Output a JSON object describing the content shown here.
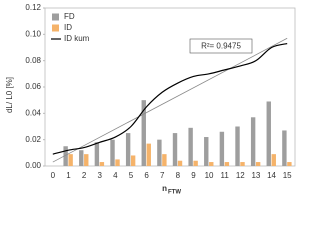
{
  "chart_data": {
    "type": "bar",
    "ylabel": "dL/ L0 [%]",
    "xlabel": "n",
    "xlabel_sub": "FTW",
    "categories": [
      "0",
      "1",
      "2",
      "3",
      "4",
      "5",
      "6",
      "7",
      "8",
      "9",
      "10",
      "11",
      "12",
      "13",
      "14",
      "15"
    ],
    "series": [
      {
        "name": "FD",
        "type": "bar",
        "color": "#9e9e9e",
        "values": [
          null,
          0.015,
          0.012,
          0.018,
          0.02,
          0.025,
          0.05,
          0.02,
          0.025,
          0.029,
          0.022,
          0.026,
          0.03,
          0.037,
          0.049,
          0.027
        ]
      },
      {
        "name": "ID",
        "type": "bar",
        "color": "#f5b36a",
        "values": [
          null,
          0.009,
          0.009,
          0.003,
          0.005,
          0.008,
          0.017,
          0.009,
          0.004,
          0.004,
          0.003,
          0.003,
          0.003,
          0.003,
          0.009,
          0.003
        ]
      },
      {
        "name": "ID kum",
        "type": "line",
        "color": "#000000",
        "values": [
          0.009,
          0.012,
          0.014,
          0.018,
          0.022,
          0.03,
          0.045,
          0.056,
          0.063,
          0.068,
          0.07,
          0.073,
          0.076,
          0.08,
          0.09,
          0.093
        ]
      }
    ],
    "trend": {
      "color": "#8a8a8a",
      "values": [
        0.003,
        0.097
      ],
      "label": "R²= 0.9475"
    },
    "ylim": [
      0,
      0.12
    ],
    "yticks": [
      {
        "value": 0,
        "label": "0.00"
      },
      {
        "value": 0.02,
        "label": "0.02"
      },
      {
        "value": 0.04,
        "label": "0.04"
      },
      {
        "value": 0.06,
        "label": "0.06"
      },
      {
        "value": 0.08,
        "label": "0.08"
      },
      {
        "value": 0.1,
        "label": "0.10"
      },
      {
        "value": 0.12,
        "label": "0.12"
      }
    ],
    "legend": "top-left"
  }
}
